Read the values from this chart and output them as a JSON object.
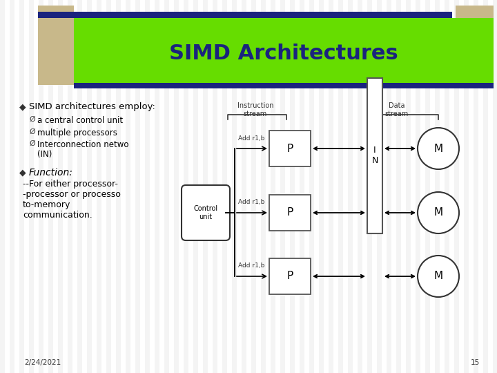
{
  "title": "SIMD Architectures",
  "title_color": "#1A237E",
  "title_bg_color": "#66DD00",
  "accent_bar_color": "#1A237E",
  "accent_tan_color": "#C8B88A",
  "bg_color": "#FFFFFF",
  "stripe_color": "#E8E8E8",
  "bullet1": "SIMD architectures employ:",
  "sub_bullets": [
    "a central control unit",
    "multiple processors",
    "Interconnection netwo\n(IN)"
  ],
  "bullet2": "Function:",
  "bullet2_text": "--For either processor-\n-processor or processo\nto-memory\ncommunication.",
  "date_text": "2/24/2021",
  "page_num": "15",
  "diagram": {
    "instr_stream_label": "Instruction\nstream",
    "data_stream_label": "Data\nstream",
    "processor_label": "P",
    "memory_label": "M",
    "network_label": "I\nN",
    "control_label": "Control\nunit",
    "instruction_label": "Add r1,b"
  }
}
